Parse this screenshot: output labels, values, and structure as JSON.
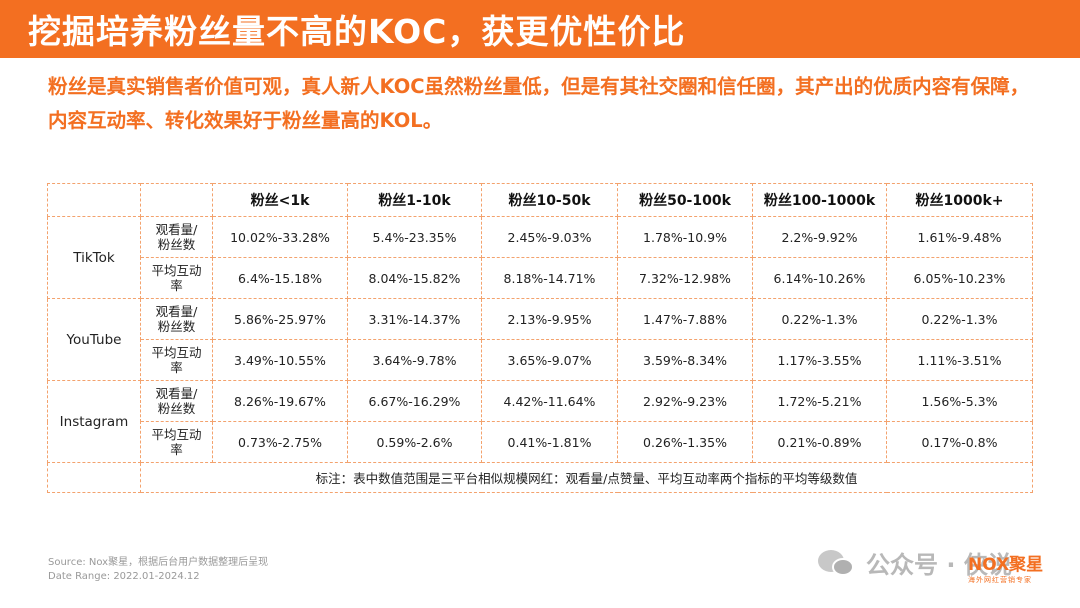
{
  "title": "挖掘培养粉丝量不高的KOC，获更优性价比",
  "subtitle": "粉丝是真实销售者价值可观，真人新人KOC虽然粉丝量低，但是有其社交圈和信任圈，其产出的优质内容有保障，内容互动率、转化效果好于粉丝量高的KOL。",
  "table": {
    "headers": [
      "",
      "",
      "粉丝<1k",
      "粉丝1-10k",
      "粉丝10-50k",
      "粉丝50-100k",
      "粉丝100-1000k",
      "粉丝1000k+"
    ],
    "metric_labels": {
      "views_line1": "观看量/",
      "views_line2": "粉丝数",
      "engage_line1": "平均互动",
      "engage_line2": "率"
    },
    "platforms": [
      {
        "name": "TikTok",
        "views": [
          "10.02%-33.28%",
          "5.4%-23.35%",
          "2.45%-9.03%",
          "1.78%-10.9%",
          "2.2%-9.92%",
          "1.61%-9.48%"
        ],
        "engagement": [
          "6.4%-15.18%",
          "8.04%-15.82%",
          "8.18%-14.71%",
          "7.32%-12.98%",
          "6.14%-10.26%",
          "6.05%-10.23%"
        ]
      },
      {
        "name": "YouTube",
        "views": [
          "5.86%-25.97%",
          "3.31%-14.37%",
          "2.13%-9.95%",
          "1.47%-7.88%",
          "0.22%-1.3%",
          "0.22%-1.3%"
        ],
        "engagement": [
          "3.49%-10.55%",
          "3.64%-9.78%",
          "3.65%-9.07%",
          "3.59%-8.34%",
          "1.17%-3.55%",
          "1.11%-3.51%"
        ]
      },
      {
        "name": "Instagram",
        "views": [
          "8.26%-19.67%",
          "6.67%-16.29%",
          "4.42%-11.64%",
          "2.92%-9.23%",
          "1.72%-5.21%",
          "1.56%-5.3%"
        ],
        "engagement": [
          "0.73%-2.75%",
          "0.59%-2.6%",
          "0.41%-1.81%",
          "0.26%-1.35%",
          "0.21%-0.89%",
          "0.17%-0.8%"
        ]
      }
    ],
    "note": "标注：表中数值范围是三平台相似规模网红：观看量/点赞量、平均互动率两个指标的平均等级数值"
  },
  "source": {
    "line1": "Source:    Nox聚星，根据后台用户数据整理后呈现",
    "line2": "Date Range:  2022.01-2024.12"
  },
  "watermark": "公众号 · 侠说",
  "logo": {
    "main": "NOX聚星",
    "sub": "海外网红营销专家"
  },
  "colors": {
    "accent": "#f36f21",
    "border": "#f3a26d"
  }
}
